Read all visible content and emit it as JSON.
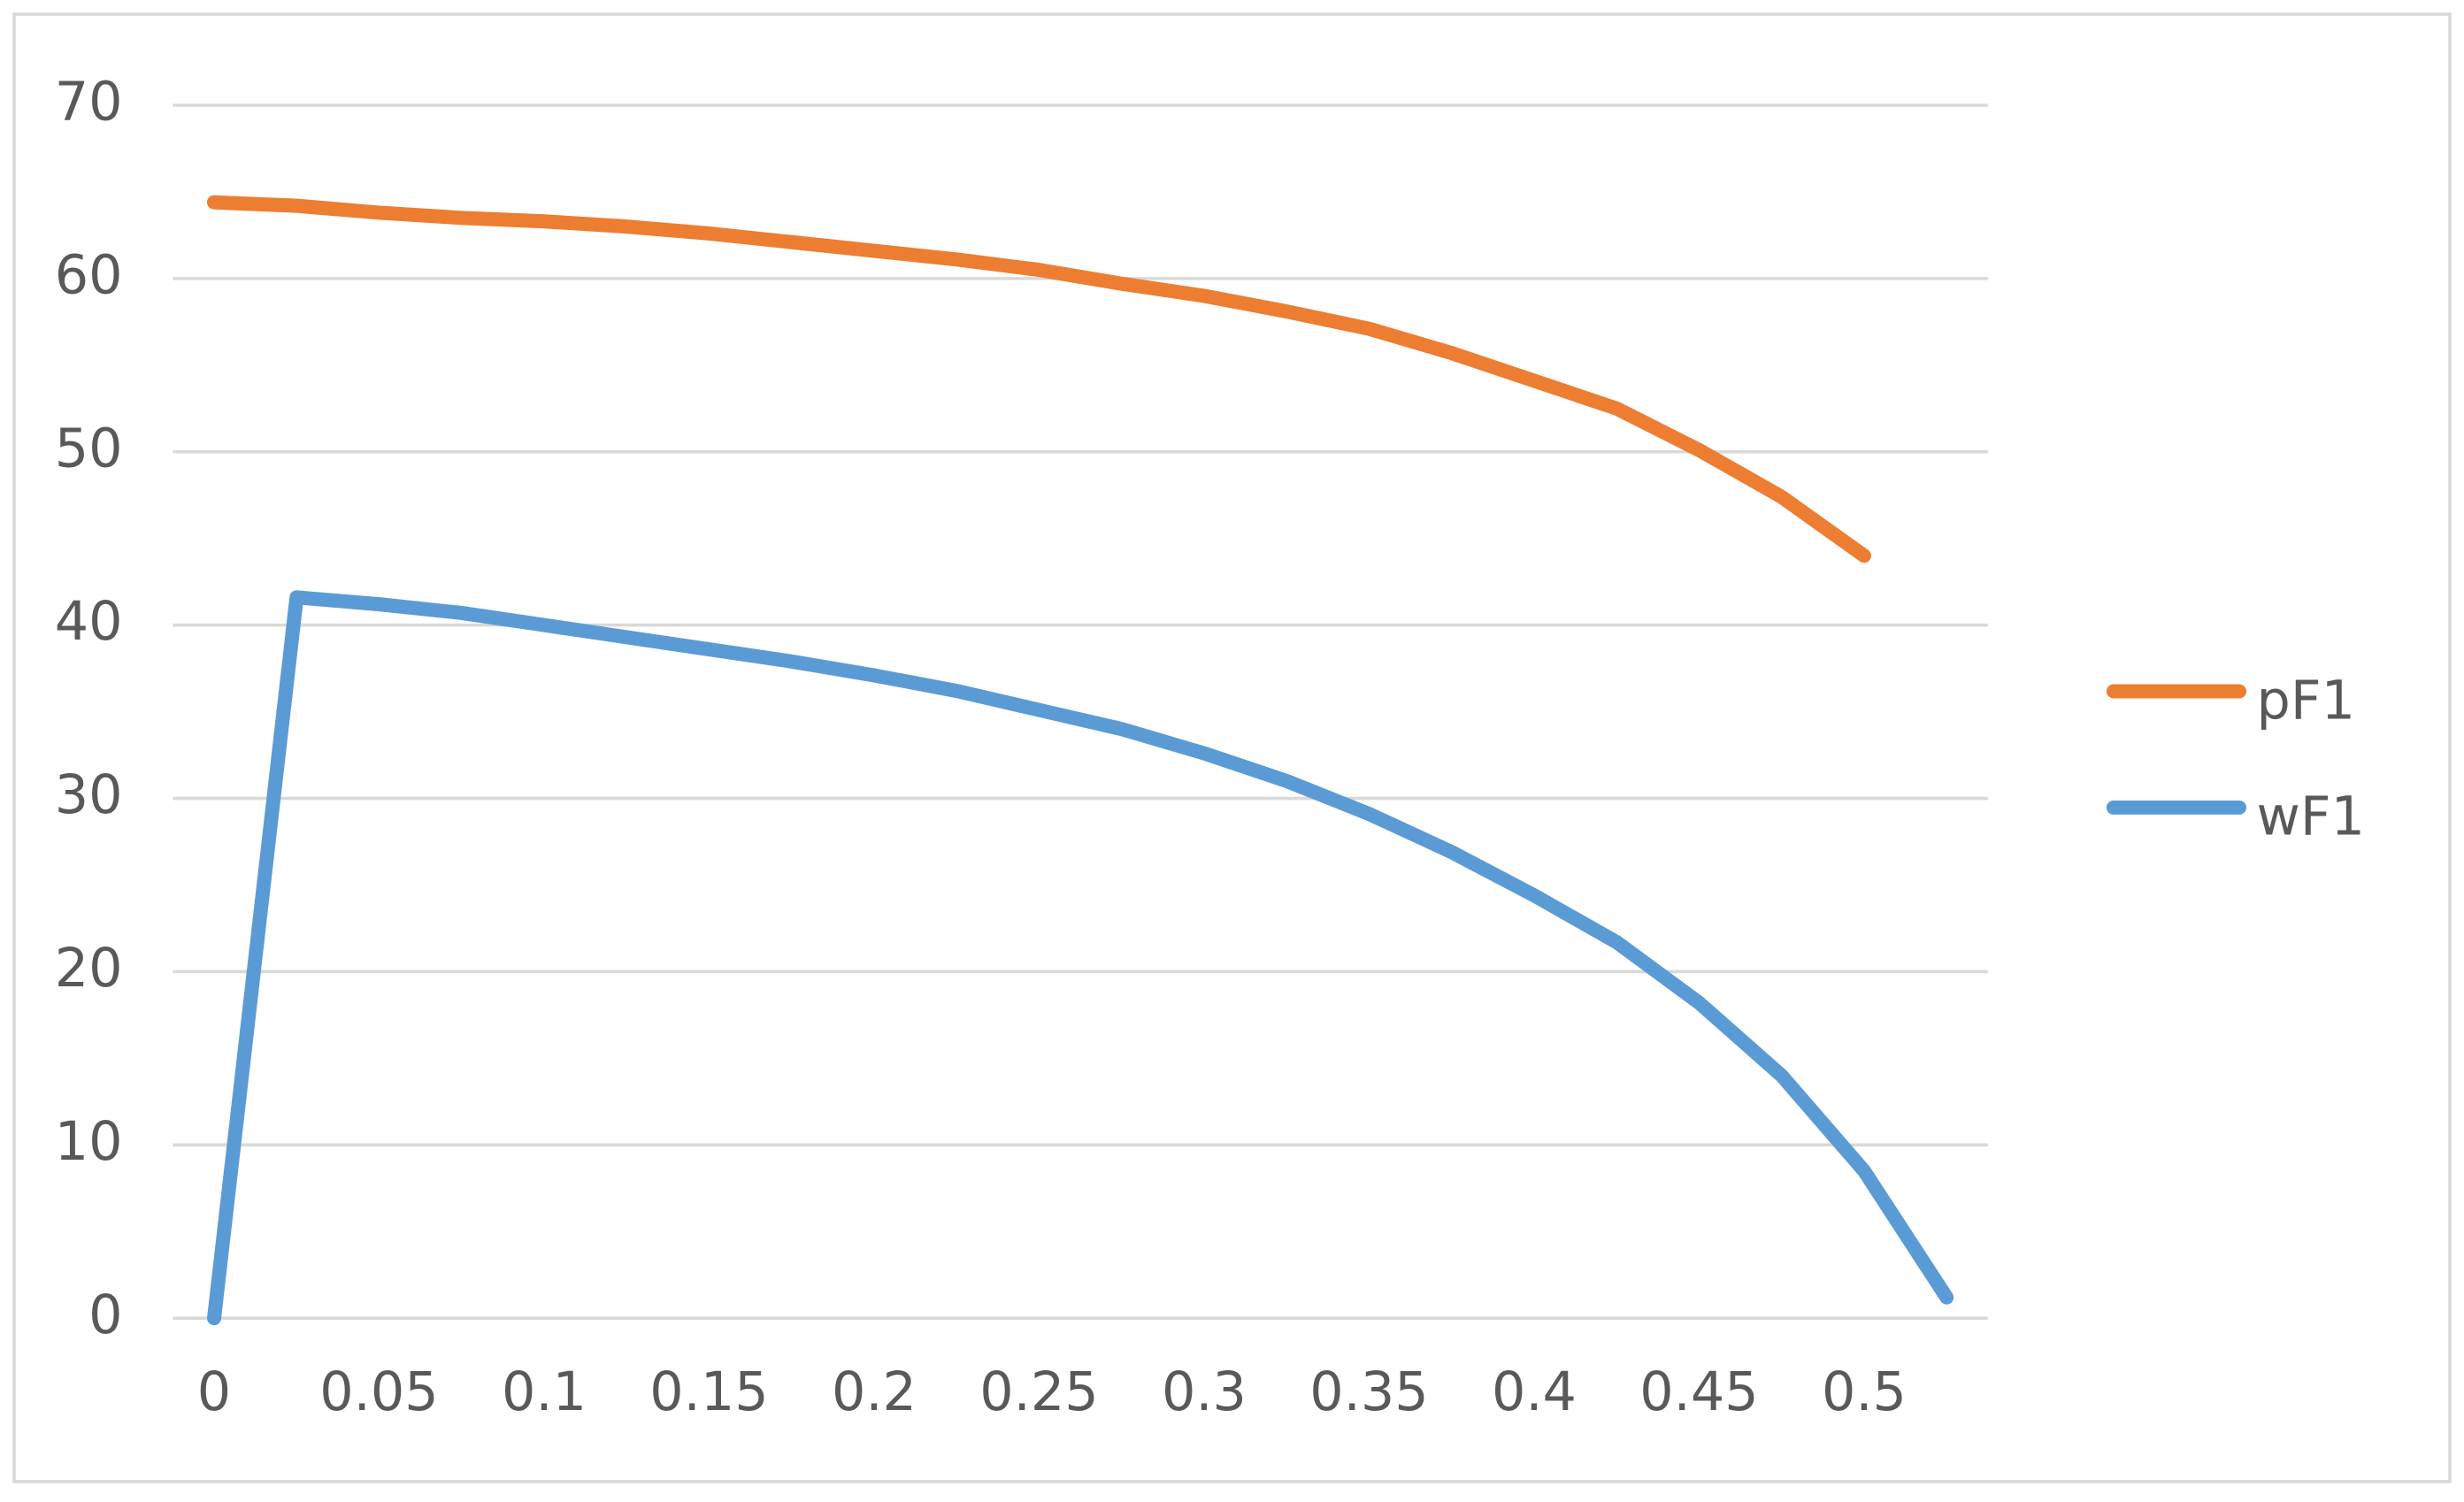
{
  "chart_data": {
    "type": "line",
    "categories": [
      "0",
      null,
      "0.05",
      null,
      "0.1",
      null,
      "0.15",
      null,
      "0.2",
      null,
      "0.25",
      null,
      "0.3",
      null,
      "0.35",
      null,
      "0.4",
      null,
      "0.45",
      null,
      "0.5",
      null
    ],
    "series": [
      {
        "name": "pF1",
        "color": "#ed7d31",
        "values": [
          64.4,
          64.2,
          63.8,
          63.5,
          63.3,
          63.0,
          62.6,
          62.1,
          61.6,
          61.1,
          60.5,
          59.7,
          59.0,
          58.1,
          57.1,
          55.7,
          54.1,
          52.5,
          50.1,
          47.4,
          44.0,
          null
        ]
      },
      {
        "name": "wF1",
        "color": "#5b9bd5",
        "values": [
          0,
          41.6,
          41.2,
          40.7,
          40.0,
          39.3,
          38.6,
          37.9,
          37.1,
          36.2,
          35.1,
          34.0,
          32.6,
          31.0,
          29.1,
          26.9,
          24.4,
          21.7,
          18.2,
          14.0,
          8.5,
          1.2
        ]
      }
    ],
    "ylim": [
      0,
      70
    ],
    "yticks": [
      0,
      10,
      20,
      30,
      40,
      50,
      60,
      70
    ],
    "grid": true,
    "legend": "right"
  }
}
